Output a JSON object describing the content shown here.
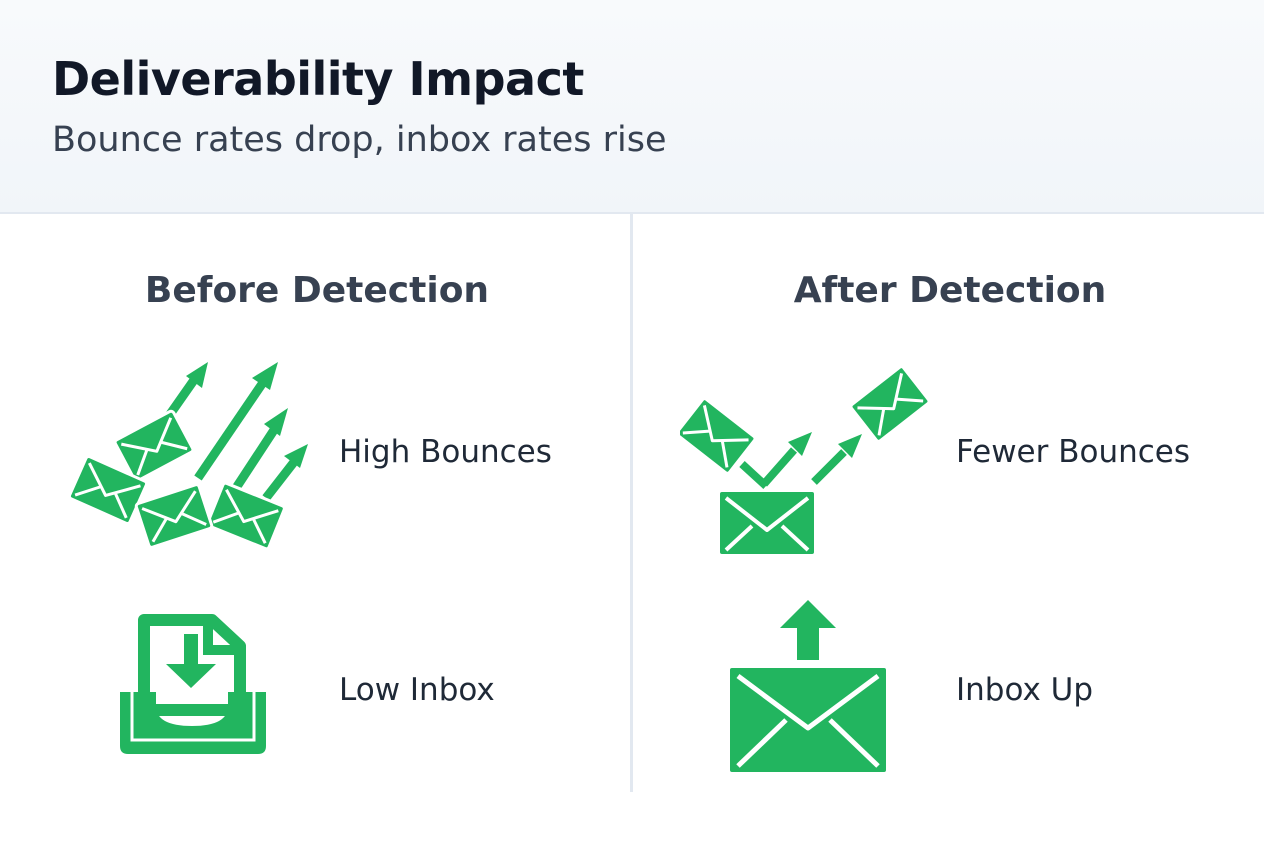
{
  "header": {
    "title": "Deliverability Impact",
    "subtitle": "Bounce rates drop, inbox rates rise"
  },
  "before": {
    "heading": "Before Detection",
    "rows": [
      {
        "label": "High Bounces",
        "icon": "bouncing-envelopes-icon"
      },
      {
        "label": "Low Inbox",
        "icon": "inbox-tray-icon"
      }
    ]
  },
  "after": {
    "heading": "After Detection",
    "rows": [
      {
        "label": "Fewer Bounces",
        "icon": "few-bouncing-envelopes-icon"
      },
      {
        "label": "Inbox Up",
        "icon": "envelope-up-arrow-icon"
      }
    ]
  },
  "colors": {
    "accent": "#22b55f",
    "divider": "#e2e8f0",
    "title": "#111827",
    "text": "#1f2937"
  }
}
